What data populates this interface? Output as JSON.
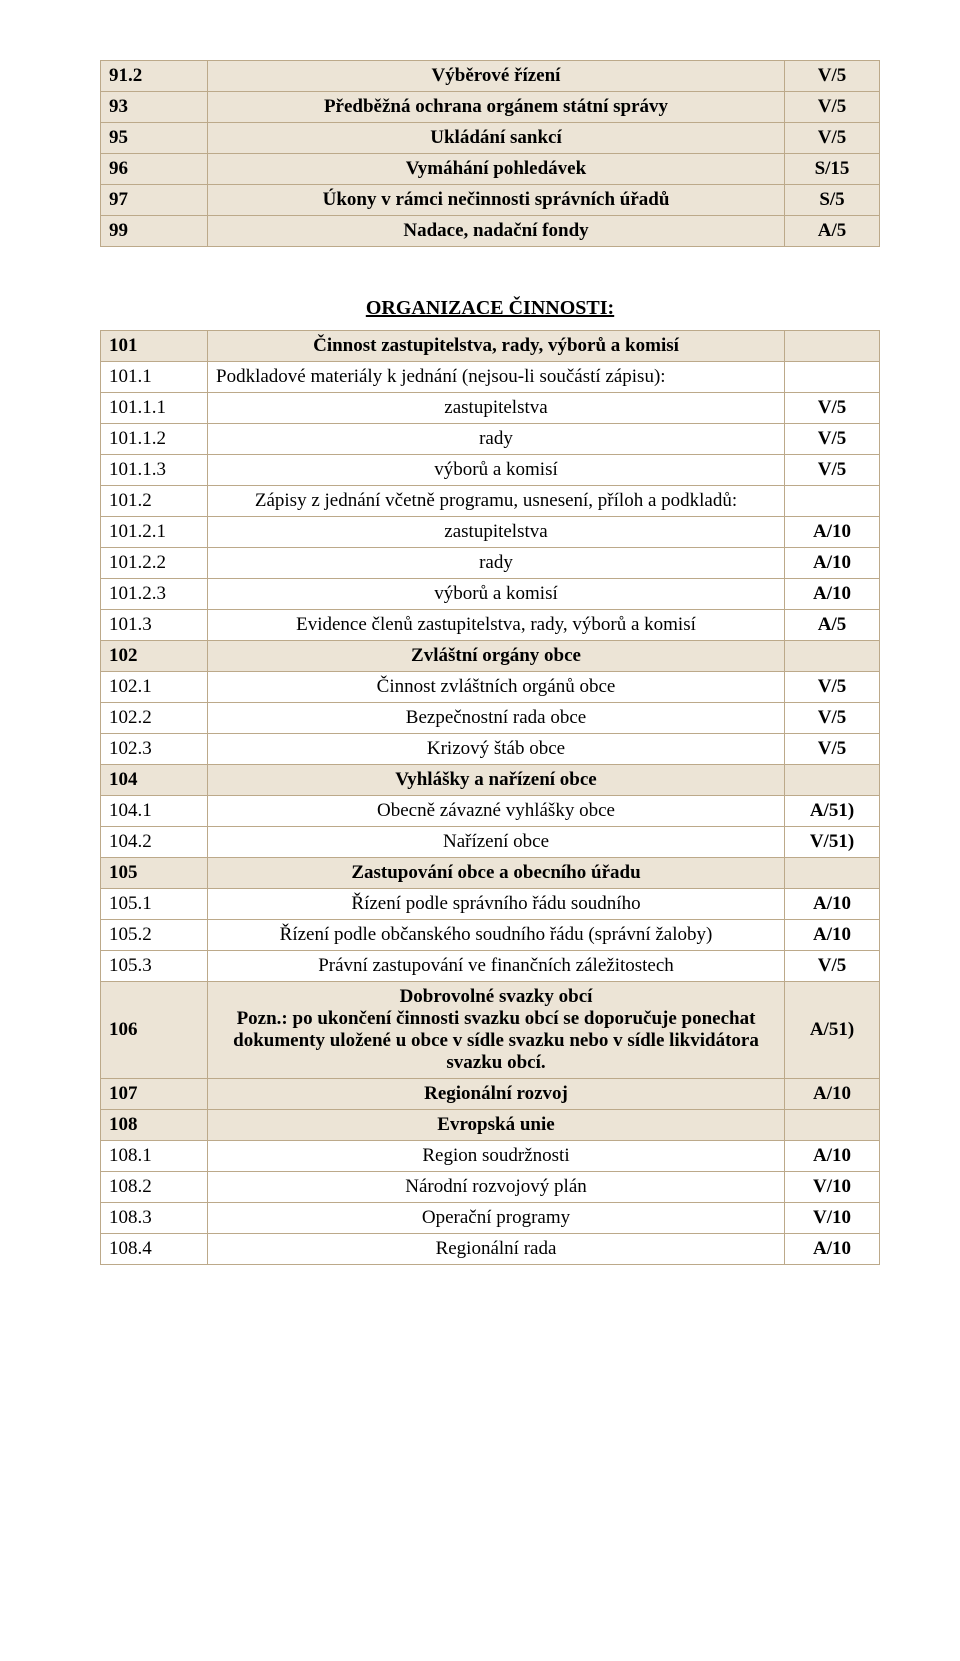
{
  "table1": {
    "rows": [
      {
        "type": "header",
        "code": "91.2",
        "desc": "Výběrové řízení",
        "val": "V/5"
      },
      {
        "type": "header",
        "code": "93",
        "desc": "Předběžná ochrana orgánem státní správy",
        "val": "V/5"
      },
      {
        "type": "header",
        "code": "95",
        "desc": "Ukládání sankcí",
        "val": "V/5"
      },
      {
        "type": "header",
        "code": "96",
        "desc": "Vymáhání pohledávek",
        "val": "S/15"
      },
      {
        "type": "header",
        "code": "97",
        "desc": "Úkony v rámci nečinnosti správních úřadů",
        "val": "S/5"
      },
      {
        "type": "header",
        "code": "99",
        "desc": "Nadace, nadační fondy",
        "val": "A/5"
      }
    ]
  },
  "section_title": "ORGANIZACE ČINNOSTI:",
  "table2": {
    "rows": [
      {
        "type": "header",
        "code": "101",
        "desc": "Činnost zastupitelstva, rady, výborů a komisí",
        "val": ""
      },
      {
        "type": "normal",
        "code": "101.1",
        "desc": "Podkladové materiály k jednání (nejsou-li součástí zápisu):",
        "val": "",
        "align": "left"
      },
      {
        "type": "normal",
        "code": "101.1.1",
        "desc": "zastupitelstva",
        "val": "V/5"
      },
      {
        "type": "normal",
        "code": "101.1.2",
        "desc": "rady",
        "val": "V/5"
      },
      {
        "type": "normal",
        "code": "101.1.3",
        "desc": "výborů a komisí",
        "val": "V/5"
      },
      {
        "type": "normal",
        "code": "101.2",
        "desc": "Zápisy z jednání včetně programu, usnesení, příloh a podkladů:",
        "val": ""
      },
      {
        "type": "normal",
        "code": "101.2.1",
        "desc": "zastupitelstva",
        "val": "A/10"
      },
      {
        "type": "normal",
        "code": "101.2.2",
        "desc": "rady",
        "val": "A/10"
      },
      {
        "type": "normal",
        "code": "101.2.3",
        "desc": "výborů a komisí",
        "val": "A/10"
      },
      {
        "type": "normal",
        "code": "101.3",
        "desc": "Evidence členů zastupitelstva, rady, výborů a komisí",
        "val": "A/5"
      },
      {
        "type": "header",
        "code": "102",
        "desc": "Zvláštní orgány obce",
        "val": ""
      },
      {
        "type": "normal",
        "code": "102.1",
        "desc": "Činnost zvláštních orgánů obce",
        "val": "V/5"
      },
      {
        "type": "normal",
        "code": "102.2",
        "desc": "Bezpečnostní rada obce",
        "val": "V/5"
      },
      {
        "type": "normal",
        "code": "102.3",
        "desc": "Krizový štáb obce",
        "val": "V/5"
      },
      {
        "type": "header",
        "code": "104",
        "desc": "Vyhlášky a nařízení obce",
        "val": ""
      },
      {
        "type": "normal",
        "code": "104.1",
        "desc": "Obecně závazné vyhlášky obce",
        "val": "A/51)"
      },
      {
        "type": "normal",
        "code": "104.2",
        "desc": "Nařízení obce",
        "val": "V/51)"
      },
      {
        "type": "header",
        "code": "105",
        "desc": "Zastupování obce a obecního úřadu",
        "val": ""
      },
      {
        "type": "normal",
        "code": "105.1",
        "desc": "Řízení podle správního řádu soudního",
        "val": "A/10"
      },
      {
        "type": "normal",
        "code": "105.2",
        "desc": "Řízení podle občanského soudního řádu (správní žaloby)",
        "val": "A/10"
      },
      {
        "type": "normal",
        "code": "105.3",
        "desc": "Právní zastupování ve finančních záležitostech",
        "val": "V/5"
      },
      {
        "type": "header",
        "code": "106",
        "desc": "Dobrovolné svazky obcí\nPozn.: po ukončení činnosti svazku obcí se doporučuje ponechat dokumenty uložené u obce v sídle svazku nebo v sídle likvidátora svazku obcí.",
        "val": "A/51)"
      },
      {
        "type": "header",
        "code": "107",
        "desc": "Regionální rozvoj",
        "val": "A/10"
      },
      {
        "type": "header",
        "code": "108",
        "desc": "Evropská unie",
        "val": ""
      },
      {
        "type": "normal",
        "code": "108.1",
        "desc": "Region soudržnosti",
        "val": "A/10"
      },
      {
        "type": "normal",
        "code": "108.2",
        "desc": "Národní rozvojový plán",
        "val": "V/10"
      },
      {
        "type": "normal",
        "code": "108.3",
        "desc": "Operační programy",
        "val": "V/10"
      },
      {
        "type": "normal",
        "code": "108.4",
        "desc": "Regionální rada",
        "val": "A/10"
      }
    ]
  }
}
